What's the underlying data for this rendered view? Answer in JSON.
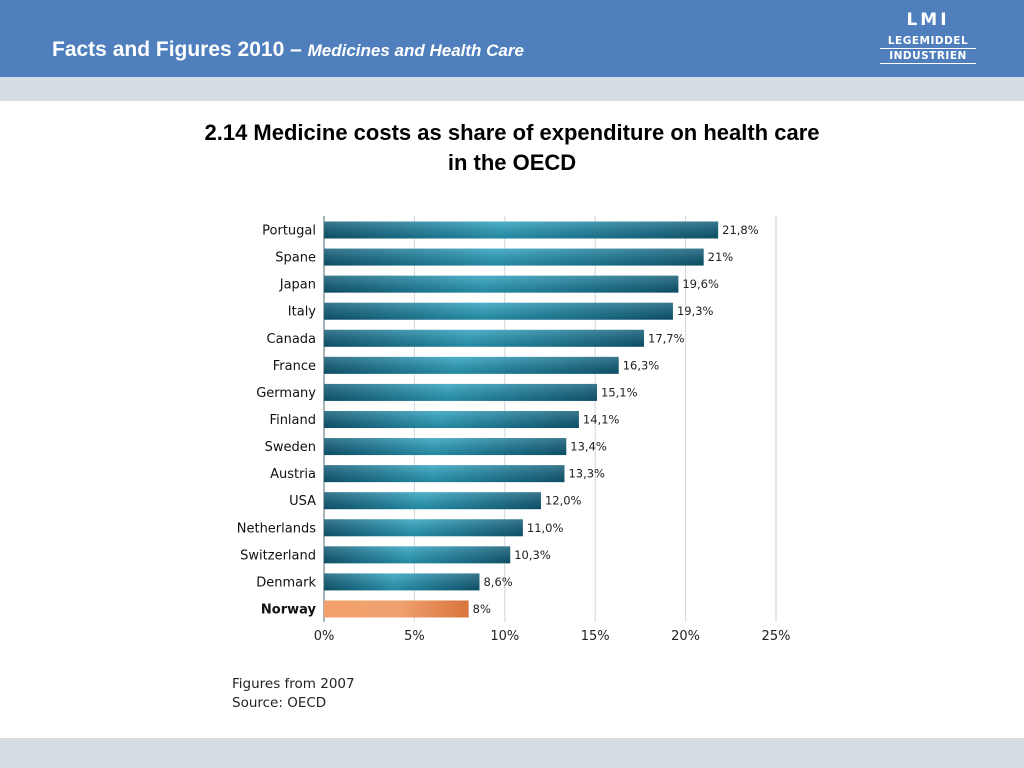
{
  "header": {
    "title": "Facts and Figures 2010 – ",
    "subtitle": "Medicines and Health Care",
    "logo": {
      "top": "LMI",
      "line1": "LEGEMIDDEL",
      "line2": "INDUSTRIEN"
    }
  },
  "colors": {
    "header_bg": "#4f80bd",
    "strip": "#d5dde2",
    "bar": "#1a7a98",
    "bar_dark": "#0e5a75",
    "highlight_bar": "#e8874e",
    "grid": "#cfd6da"
  },
  "chart_data": {
    "type": "bar",
    "orientation": "horizontal",
    "title": "2.14 Medicine costs as share of expenditure on health care in the OECD",
    "categories": [
      "Portugal",
      "Spane",
      "Japan",
      "Italy",
      "Canada",
      "France",
      "Germany",
      "Finland",
      "Sweden",
      "Austria",
      "USA",
      "Netherlands",
      "Switzerland",
      "Denmark",
      "Norway"
    ],
    "values": [
      21.8,
      21,
      19.6,
      19.3,
      17.7,
      16.3,
      15.1,
      14.1,
      13.4,
      13.3,
      12.0,
      11.0,
      10.3,
      8.6,
      8
    ],
    "value_labels": [
      "21,8%",
      "21%",
      "19,6%",
      "19,3%",
      "17,7%",
      "16,3%",
      "15,1%",
      "14,1%",
      "13,4%",
      "13,3%",
      "12,0%",
      "11,0%",
      "10,3%",
      "8,6%",
      "8%"
    ],
    "highlight": "Norway",
    "xlim": [
      0,
      25
    ],
    "x_ticks": [
      "0%",
      "5%",
      "10%",
      "15%",
      "20%",
      "25%"
    ],
    "x_tick_values": [
      0,
      5,
      10,
      15,
      20,
      25
    ],
    "grid": true
  },
  "footnote": {
    "line1": "Figures from 2007",
    "line2": "Source: OECD"
  }
}
